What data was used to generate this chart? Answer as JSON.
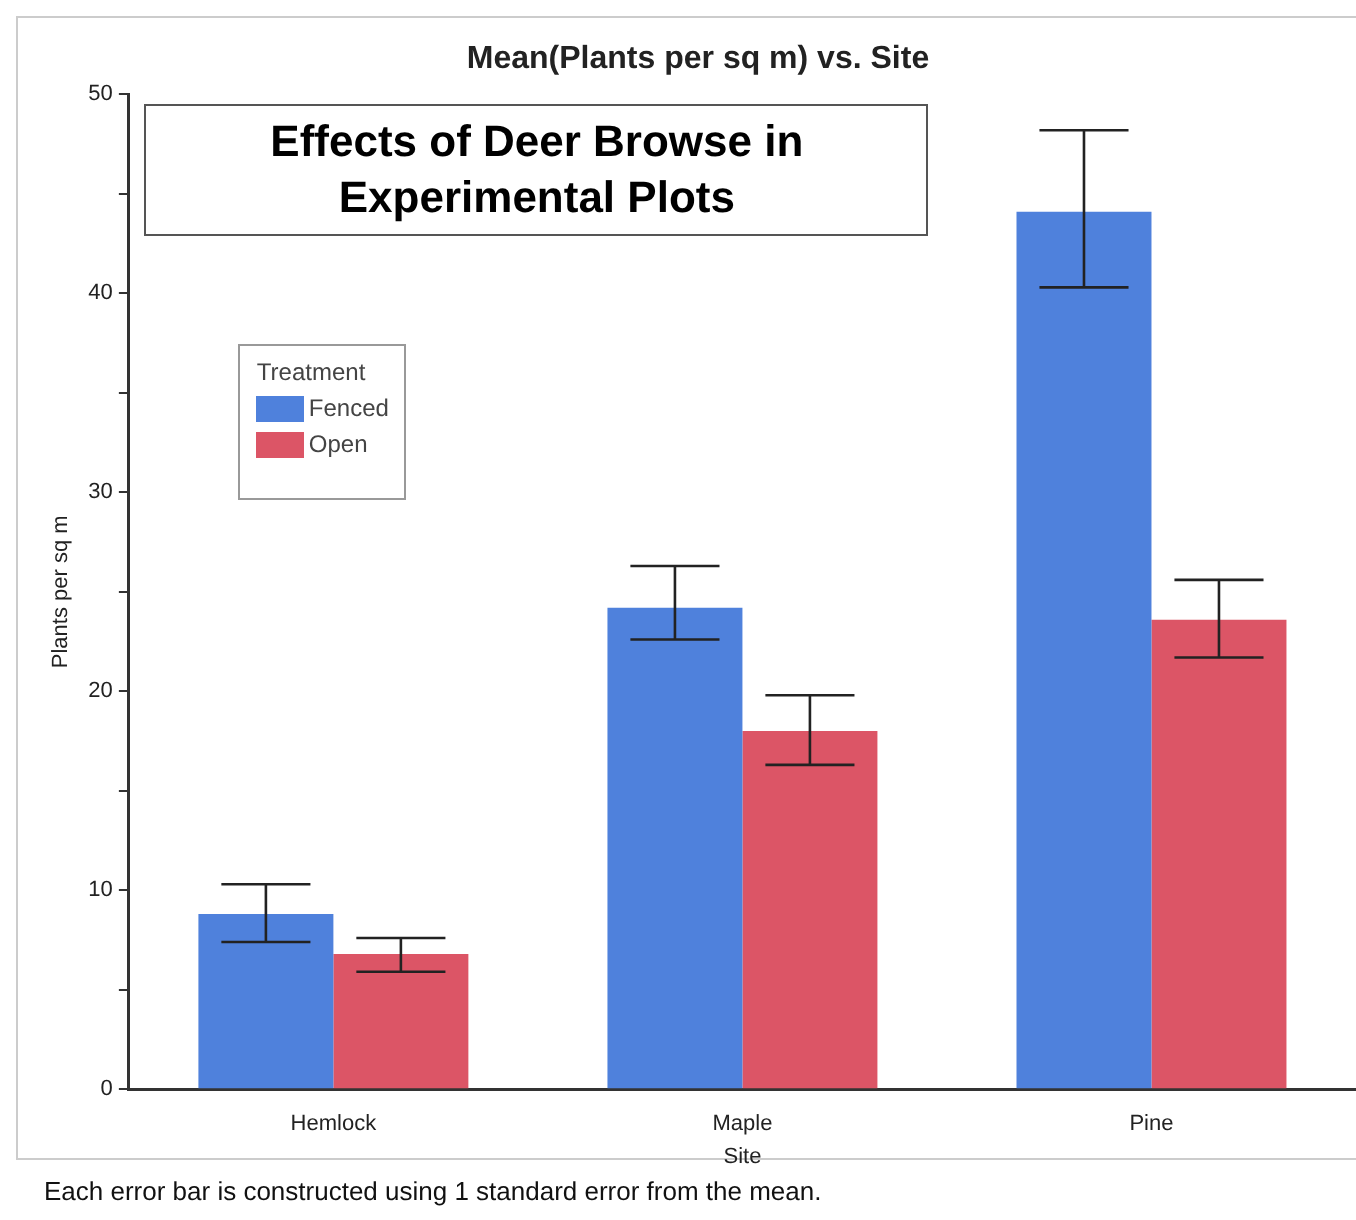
{
  "chart_data": {
    "type": "bar",
    "title": "Mean(Plants per sq m) vs. Site",
    "xlabel": "Site",
    "ylabel": "Plants per sq m",
    "legend_title": "Treatment",
    "categories": [
      "Hemlock",
      "Maple",
      "Pine"
    ],
    "series": [
      {
        "name": "Fenced",
        "color": "#4f81dc",
        "values": [
          8.8,
          24.2,
          44.1
        ],
        "errors": [
          [
            7.4,
            10.3
          ],
          [
            22.6,
            26.3
          ],
          [
            40.3,
            48.2
          ]
        ]
      },
      {
        "name": "Open",
        "color": "#dc5566",
        "values": [
          6.8,
          18.0,
          23.6
        ],
        "errors": [
          [
            5.9,
            7.6
          ],
          [
            16.3,
            19.8
          ],
          [
            21.7,
            25.6
          ]
        ]
      }
    ],
    "ylim": [
      0,
      50
    ],
    "yticks": [
      0,
      {
        "value": 5,
        "label": null
      },
      10,
      {
        "value": 15,
        "label": null
      },
      20,
      {
        "value": 25,
        "label": null
      },
      30,
      {
        "value": 35,
        "label": null
      },
      40,
      {
        "value": 45,
        "label": null
      },
      50
    ],
    "grid": false,
    "legend": "top left",
    "annotations": [
      "Effects of Deer Browse in Experimental Plots",
      "Each error bar is constructed using 1 standard error from the mean."
    ]
  }
}
